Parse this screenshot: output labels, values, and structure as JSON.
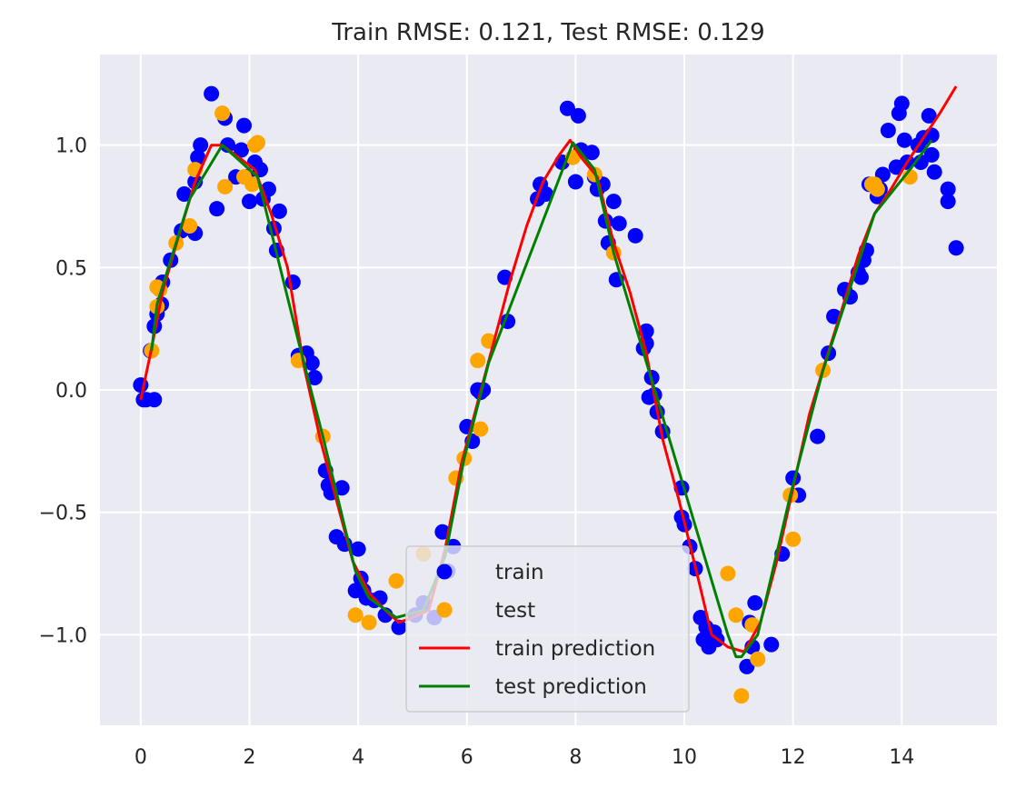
{
  "chart_data": {
    "type": "scatter",
    "title": "Train RMSE: 0.121, Test RMSE: 0.129",
    "xlabel": "",
    "ylabel": "",
    "xlim": [
      -0.75,
      15.75
    ],
    "ylim": [
      -1.37,
      1.37
    ],
    "xticks": [
      0,
      2,
      4,
      6,
      8,
      10,
      12,
      14
    ],
    "xtick_labels": [
      "0",
      "2",
      "4",
      "6",
      "8",
      "10",
      "12",
      "14"
    ],
    "yticks": [
      -1.0,
      -0.5,
      0.0,
      0.5,
      1.0
    ],
    "ytick_labels": [
      "−1.0",
      "−0.5",
      "0.0",
      "0.5",
      "1.0"
    ],
    "grid": true,
    "legend_position": "lower center",
    "colors": {
      "background": "#eaeaf2",
      "grid": "#ffffff",
      "train": "#0000ff",
      "test": "#ffa500",
      "train_prediction": "#ff0000",
      "test_prediction": "#008000"
    },
    "series": [
      {
        "name": "train",
        "kind": "scatter",
        "color": "#0000ff",
        "points": [
          [
            0.0,
            0.02
          ],
          [
            0.05,
            -0.04
          ],
          [
            0.1,
            -0.04
          ],
          [
            0.25,
            -0.04
          ],
          [
            0.18,
            0.16
          ],
          [
            0.25,
            0.26
          ],
          [
            0.3,
            0.31
          ],
          [
            0.38,
            0.35
          ],
          [
            0.4,
            0.44
          ],
          [
            0.55,
            0.53
          ],
          [
            0.75,
            0.65
          ],
          [
            0.8,
            0.8
          ],
          [
            1.0,
            0.64
          ],
          [
            1.0,
            0.85
          ],
          [
            1.05,
            0.95
          ],
          [
            1.1,
            1.0
          ],
          [
            1.3,
            1.21
          ],
          [
            1.4,
            0.74
          ],
          [
            1.55,
            1.11
          ],
          [
            1.6,
            1.0
          ],
          [
            1.75,
            0.87
          ],
          [
            1.85,
            0.98
          ],
          [
            1.9,
            1.08
          ],
          [
            1.95,
            0.87
          ],
          [
            2.0,
            0.77
          ],
          [
            2.1,
            0.93
          ],
          [
            2.2,
            0.9
          ],
          [
            2.25,
            0.78
          ],
          [
            2.35,
            0.82
          ],
          [
            2.45,
            0.66
          ],
          [
            2.5,
            0.57
          ],
          [
            2.55,
            0.73
          ],
          [
            2.8,
            0.44
          ],
          [
            2.9,
            0.14
          ],
          [
            3.05,
            0.15
          ],
          [
            3.15,
            0.11
          ],
          [
            3.2,
            0.05
          ],
          [
            3.4,
            -0.33
          ],
          [
            3.45,
            -0.39
          ],
          [
            3.5,
            -0.42
          ],
          [
            3.6,
            -0.6
          ],
          [
            3.7,
            -0.4
          ],
          [
            3.75,
            -0.63
          ],
          [
            3.95,
            -0.82
          ],
          [
            4.0,
            -0.65
          ],
          [
            4.05,
            -0.77
          ],
          [
            4.1,
            -0.82
          ],
          [
            4.15,
            -0.85
          ],
          [
            4.3,
            -0.86
          ],
          [
            4.4,
            -0.85
          ],
          [
            4.5,
            -0.92
          ],
          [
            4.75,
            -0.97
          ],
          [
            5.05,
            -0.92
          ],
          [
            5.2,
            -0.87
          ],
          [
            5.4,
            -0.93
          ],
          [
            5.55,
            -0.58
          ],
          [
            5.65,
            -0.74
          ],
          [
            5.75,
            -0.64
          ],
          [
            6.0,
            -0.15
          ],
          [
            6.1,
            -0.21
          ],
          [
            6.2,
            0.0
          ],
          [
            6.25,
            -0.01
          ],
          [
            6.3,
            0.0
          ],
          [
            6.7,
            0.46
          ],
          [
            6.75,
            0.28
          ],
          [
            7.3,
            0.78
          ],
          [
            7.35,
            0.84
          ],
          [
            7.45,
            0.8
          ],
          [
            7.75,
            0.93
          ],
          [
            7.85,
            1.15
          ],
          [
            8.0,
            0.85
          ],
          [
            8.05,
            1.12
          ],
          [
            8.1,
            0.98
          ],
          [
            8.3,
            0.97
          ],
          [
            8.35,
            0.87
          ],
          [
            8.4,
            0.82
          ],
          [
            8.5,
            0.84
          ],
          [
            8.55,
            0.69
          ],
          [
            8.6,
            0.6
          ],
          [
            8.7,
            0.77
          ],
          [
            8.75,
            0.45
          ],
          [
            8.8,
            0.68
          ],
          [
            9.1,
            0.63
          ],
          [
            9.25,
            0.17
          ],
          [
            9.3,
            0.24
          ],
          [
            9.3,
            0.19
          ],
          [
            9.35,
            -0.03
          ],
          [
            9.4,
            0.05
          ],
          [
            9.45,
            -0.02
          ],
          [
            9.5,
            -0.09
          ],
          [
            9.6,
            -0.17
          ],
          [
            9.95,
            -0.4
          ],
          [
            9.95,
            -0.52
          ],
          [
            10.0,
            -0.55
          ],
          [
            10.1,
            -0.64
          ],
          [
            10.2,
            -0.73
          ],
          [
            10.3,
            -0.93
          ],
          [
            10.35,
            -1.02
          ],
          [
            10.4,
            -0.97
          ],
          [
            10.45,
            -1.05
          ],
          [
            10.55,
            -0.99
          ],
          [
            10.6,
            -1.02
          ],
          [
            11.15,
            -1.13
          ],
          [
            11.2,
            -0.95
          ],
          [
            11.25,
            -1.05
          ],
          [
            11.3,
            -0.87
          ],
          [
            11.6,
            -1.04
          ],
          [
            11.8,
            -0.67
          ],
          [
            12.0,
            -0.36
          ],
          [
            12.1,
            -0.43
          ],
          [
            12.45,
            -0.19
          ],
          [
            12.65,
            0.15
          ],
          [
            12.75,
            0.3
          ],
          [
            12.95,
            0.41
          ],
          [
            13.05,
            0.38
          ],
          [
            13.2,
            0.48
          ],
          [
            13.25,
            0.46
          ],
          [
            13.3,
            0.53
          ],
          [
            13.35,
            0.57
          ],
          [
            13.4,
            0.84
          ],
          [
            13.55,
            0.79
          ],
          [
            13.6,
            0.82
          ],
          [
            13.65,
            0.88
          ],
          [
            13.75,
            1.06
          ],
          [
            13.9,
            0.91
          ],
          [
            13.95,
            1.13
          ],
          [
            14.0,
            1.17
          ],
          [
            14.05,
            1.02
          ],
          [
            14.1,
            0.93
          ],
          [
            14.3,
            1.0
          ],
          [
            14.35,
            0.93
          ],
          [
            14.4,
            1.03
          ],
          [
            14.5,
            1.12
          ],
          [
            14.55,
            1.04
          ],
          [
            14.55,
            0.96
          ],
          [
            14.6,
            0.89
          ],
          [
            14.85,
            0.82
          ],
          [
            14.85,
            0.77
          ],
          [
            15.0,
            0.58
          ]
        ]
      },
      {
        "name": "test",
        "kind": "scatter",
        "color": "#ffa500",
        "points": [
          [
            0.2,
            0.16
          ],
          [
            0.3,
            0.42
          ],
          [
            0.3,
            0.34
          ],
          [
            0.35,
            0.41
          ],
          [
            0.65,
            0.6
          ],
          [
            0.9,
            0.67
          ],
          [
            1.0,
            0.9
          ],
          [
            1.5,
            1.13
          ],
          [
            1.55,
            0.83
          ],
          [
            1.9,
            0.87
          ],
          [
            2.05,
            0.84
          ],
          [
            2.1,
            1.0
          ],
          [
            2.15,
            1.01
          ],
          [
            2.9,
            0.12
          ],
          [
            3.35,
            -0.19
          ],
          [
            3.95,
            -0.92
          ],
          [
            4.2,
            -0.95
          ],
          [
            4.7,
            -0.78
          ],
          [
            5.2,
            -0.67
          ],
          [
            5.6,
            -0.9
          ],
          [
            5.8,
            -0.36
          ],
          [
            5.95,
            -0.28
          ],
          [
            6.2,
            0.12
          ],
          [
            6.25,
            -0.16
          ],
          [
            6.4,
            0.2
          ],
          [
            7.95,
            0.95
          ],
          [
            8.35,
            0.88
          ],
          [
            8.7,
            0.56
          ],
          [
            10.8,
            -0.75
          ],
          [
            10.95,
            -0.92
          ],
          [
            11.05,
            -1.25
          ],
          [
            11.25,
            -0.96
          ],
          [
            11.35,
            -1.1
          ],
          [
            11.95,
            -0.43
          ],
          [
            12.0,
            -0.61
          ],
          [
            12.55,
            0.08
          ],
          [
            13.45,
            0.84
          ],
          [
            13.5,
            0.84
          ],
          [
            13.55,
            0.82
          ],
          [
            14.15,
            0.87
          ]
        ]
      },
      {
        "name": "train prediction",
        "kind": "line",
        "color": "#ff0000",
        "points": [
          [
            0.0,
            -0.04
          ],
          [
            0.2,
            0.17
          ],
          [
            0.4,
            0.4
          ],
          [
            0.7,
            0.63
          ],
          [
            1.0,
            0.85
          ],
          [
            1.3,
            1.0
          ],
          [
            1.5,
            1.0
          ],
          [
            1.8,
            0.95
          ],
          [
            2.1,
            0.9
          ],
          [
            2.4,
            0.72
          ],
          [
            2.7,
            0.5
          ],
          [
            3.0,
            0.1
          ],
          [
            3.3,
            -0.2
          ],
          [
            3.6,
            -0.45
          ],
          [
            3.9,
            -0.7
          ],
          [
            4.2,
            -0.83
          ],
          [
            4.5,
            -0.9
          ],
          [
            4.75,
            -0.95
          ],
          [
            5.0,
            -0.93
          ],
          [
            5.3,
            -0.9
          ],
          [
            5.6,
            -0.65
          ],
          [
            5.9,
            -0.3
          ],
          [
            6.2,
            -0.05
          ],
          [
            6.5,
            0.2
          ],
          [
            6.8,
            0.45
          ],
          [
            7.1,
            0.67
          ],
          [
            7.4,
            0.85
          ],
          [
            7.7,
            0.96
          ],
          [
            7.9,
            1.02
          ],
          [
            8.1,
            0.95
          ],
          [
            8.4,
            0.87
          ],
          [
            8.7,
            0.6
          ],
          [
            9.0,
            0.4
          ],
          [
            9.3,
            0.15
          ],
          [
            9.6,
            -0.2
          ],
          [
            9.9,
            -0.45
          ],
          [
            10.2,
            -0.72
          ],
          [
            10.5,
            -1.0
          ],
          [
            10.8,
            -1.05
          ],
          [
            11.1,
            -1.07
          ],
          [
            11.4,
            -0.95
          ],
          [
            11.7,
            -0.7
          ],
          [
            12.0,
            -0.4
          ],
          [
            12.3,
            -0.1
          ],
          [
            12.6,
            0.12
          ],
          [
            12.9,
            0.33
          ],
          [
            13.2,
            0.55
          ],
          [
            13.5,
            0.72
          ],
          [
            13.8,
            0.82
          ],
          [
            14.1,
            0.93
          ],
          [
            14.4,
            1.03
          ],
          [
            14.7,
            1.13
          ],
          [
            15.0,
            1.24
          ]
        ]
      },
      {
        "name": "test prediction",
        "kind": "line",
        "color": "#008000",
        "points": [
          [
            0.2,
            0.16
          ],
          [
            0.3,
            0.35
          ],
          [
            0.65,
            0.6
          ],
          [
            0.9,
            0.78
          ],
          [
            1.5,
            1.0
          ],
          [
            1.9,
            0.92
          ],
          [
            2.15,
            0.87
          ],
          [
            2.9,
            0.2
          ],
          [
            3.35,
            -0.19
          ],
          [
            3.95,
            -0.74
          ],
          [
            4.2,
            -0.85
          ],
          [
            4.7,
            -0.93
          ],
          [
            5.2,
            -0.9
          ],
          [
            5.6,
            -0.68
          ],
          [
            5.95,
            -0.28
          ],
          [
            6.4,
            0.11
          ],
          [
            7.95,
            1.01
          ],
          [
            8.35,
            0.9
          ],
          [
            8.7,
            0.56
          ],
          [
            10.8,
            -1.0
          ],
          [
            10.95,
            -1.09
          ],
          [
            11.05,
            -1.09
          ],
          [
            11.35,
            -1.0
          ],
          [
            11.95,
            -0.43
          ],
          [
            12.55,
            0.08
          ],
          [
            13.5,
            0.72
          ],
          [
            14.15,
            0.9
          ],
          [
            14.55,
            1.02
          ]
        ]
      }
    ]
  }
}
